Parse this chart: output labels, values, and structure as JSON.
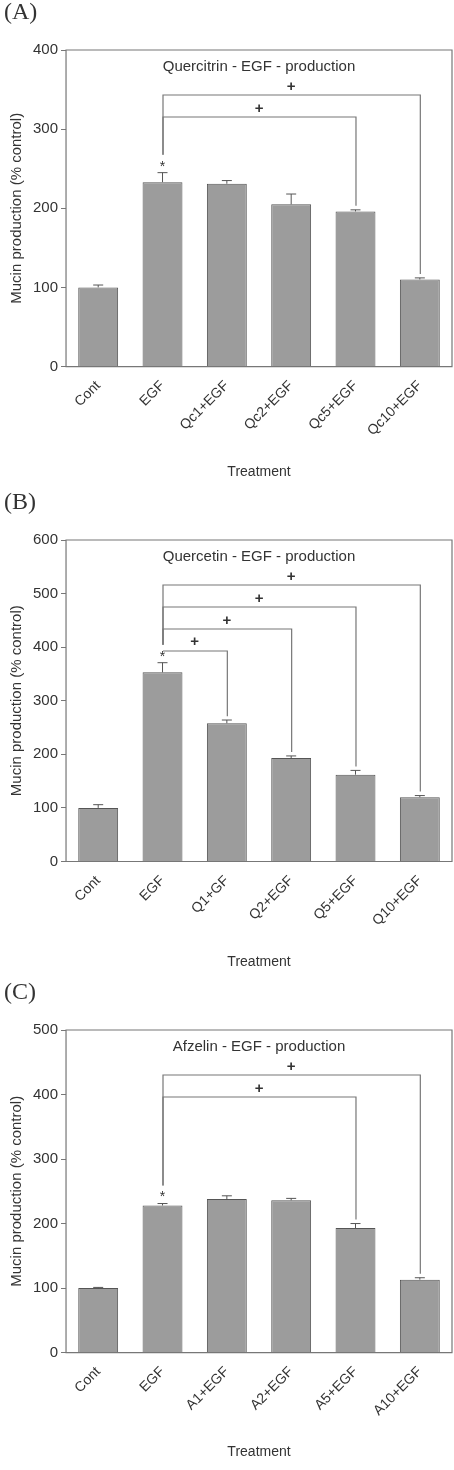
{
  "chart_data": [
    {
      "type": "bar",
      "title": "Quercitrin - EGF - production",
      "xlabel": "Treatment",
      "ylabel": "Mucin production (% control)",
      "categories": [
        "Cont",
        "EGF",
        "Qc1+EGF",
        "Qc2+EGF",
        "Qc5+EGF",
        "Qc10+EGF"
      ],
      "values": [
        100,
        233,
        231,
        205,
        196,
        110
      ],
      "color": "#9c9c9c",
      "errors": [
        [
          100,
          103
        ],
        [
          233,
          245
        ],
        [
          231,
          235
        ],
        [
          205,
          218
        ],
        [
          196,
          198
        ],
        [
          110,
          112
        ]
      ],
      "ylim": [
        0,
        400
      ],
      "yticks": [
        0,
        100,
        200,
        300,
        400
      ],
      "grid": false,
      "legend": false,
      "annotations": [
        "(A)",
        "*",
        "+",
        "+"
      ]
    },
    {
      "type": "bar",
      "title": "Quercetin - EGF - production",
      "xlabel": "Treatment",
      "ylabel": "Mucin production (% control)",
      "categories": [
        "Cont",
        "EGF",
        "Q1+GF",
        "Q2+EGF",
        "Q5+EGF",
        "Q10+EGF"
      ],
      "values": [
        100,
        353,
        258,
        193,
        162,
        120
      ],
      "color": "#9c9c9c",
      "errors": [
        [
          100,
          106
        ],
        [
          353,
          371
        ],
        [
          258,
          264
        ],
        [
          193,
          197
        ],
        [
          162,
          170
        ],
        [
          120,
          123
        ]
      ],
      "ylim": [
        0,
        600
      ],
      "yticks": [
        0,
        100,
        200,
        300,
        400,
        500,
        600
      ],
      "grid": false,
      "legend": false,
      "annotations": [
        "(B)",
        "*",
        "+",
        "+",
        "+",
        "+"
      ]
    },
    {
      "type": "bar",
      "title": "Afzelin - EGF - production",
      "xlabel": "Treatment",
      "ylabel": "Mucin production (% control)",
      "categories": [
        "Cont",
        "EGF",
        "A1+EGF",
        "A2+EGF",
        "A5+EGF",
        "A10+EGF"
      ],
      "values": [
        100,
        228,
        238,
        236,
        193,
        113
      ],
      "color": "#9c9c9c",
      "errors": [
        [
          100,
          101
        ],
        [
          228,
          231
        ],
        [
          238,
          243
        ],
        [
          236,
          239
        ],
        [
          193,
          200
        ],
        [
          113,
          116
        ]
      ],
      "ylim": [
        0,
        500
      ],
      "yticks": [
        0,
        100,
        200,
        300,
        400,
        500
      ],
      "grid": false,
      "legend": false,
      "annotations": [
        "(C)",
        "*",
        "+",
        "+"
      ]
    }
  ]
}
